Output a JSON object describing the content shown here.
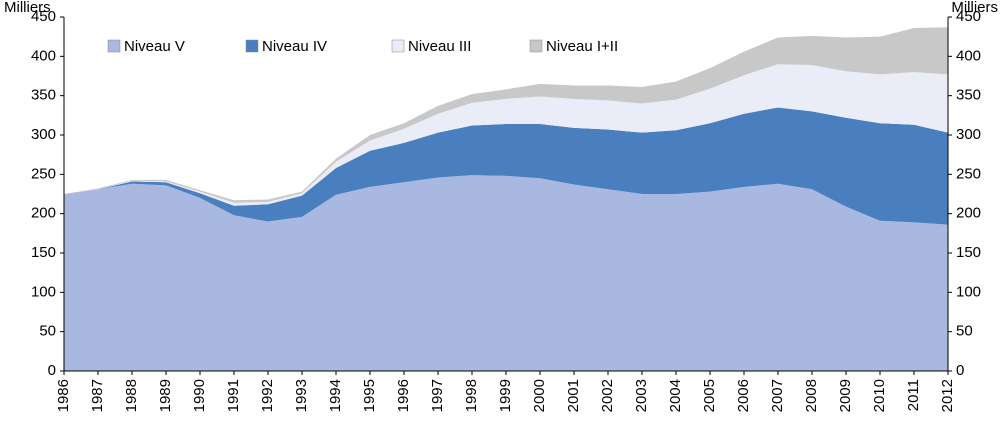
{
  "chart_data": {
    "type": "stacked_area",
    "y_label": "Milliers",
    "x": [
      1986,
      1987,
      1988,
      1989,
      1990,
      1991,
      1992,
      1993,
      1994,
      1995,
      1996,
      1997,
      1998,
      1999,
      2000,
      2001,
      2002,
      2003,
      2004,
      2005,
      2006,
      2007,
      2008,
      2009,
      2010,
      2011,
      2012
    ],
    "series": [
      {
        "name": "Niveau V",
        "color": "#a8b8e0",
        "values": [
          225,
          231,
          238,
          236,
          220,
          198,
          190,
          196,
          224,
          234,
          240,
          246,
          249,
          248,
          245,
          237,
          231,
          225,
          225,
          228,
          234,
          238,
          231,
          209,
          191,
          189,
          186
        ]
      },
      {
        "name": "Niveau IV",
        "color": "#4a7fbf",
        "values": [
          0,
          0,
          3,
          4,
          6,
          12,
          22,
          27,
          34,
          46,
          50,
          57,
          63,
          66,
          69,
          72,
          76,
          78,
          81,
          87,
          93,
          97,
          99,
          113,
          124,
          124,
          117
        ]
      },
      {
        "name": "Niveau III",
        "color": "#eaedf7",
        "values": [
          0,
          0,
          1,
          1,
          2,
          4,
          3,
          3,
          8,
          13,
          18,
          24,
          29,
          32,
          35,
          37,
          37,
          37,
          39,
          44,
          49,
          55,
          59,
          59,
          62,
          67,
          74
        ]
      },
      {
        "name": "Niveau I+II",
        "color": "#c8c8c8",
        "values": [
          0,
          1,
          1,
          2,
          2,
          3,
          3,
          2,
          4,
          7,
          7,
          10,
          11,
          12,
          16,
          17,
          19,
          21,
          23,
          26,
          30,
          34,
          37,
          43,
          48,
          56,
          60
        ]
      }
    ],
    "ylim": [
      0,
      450
    ],
    "yticks": [
      0,
      50,
      100,
      150,
      200,
      250,
      300,
      350,
      400,
      450
    ]
  }
}
